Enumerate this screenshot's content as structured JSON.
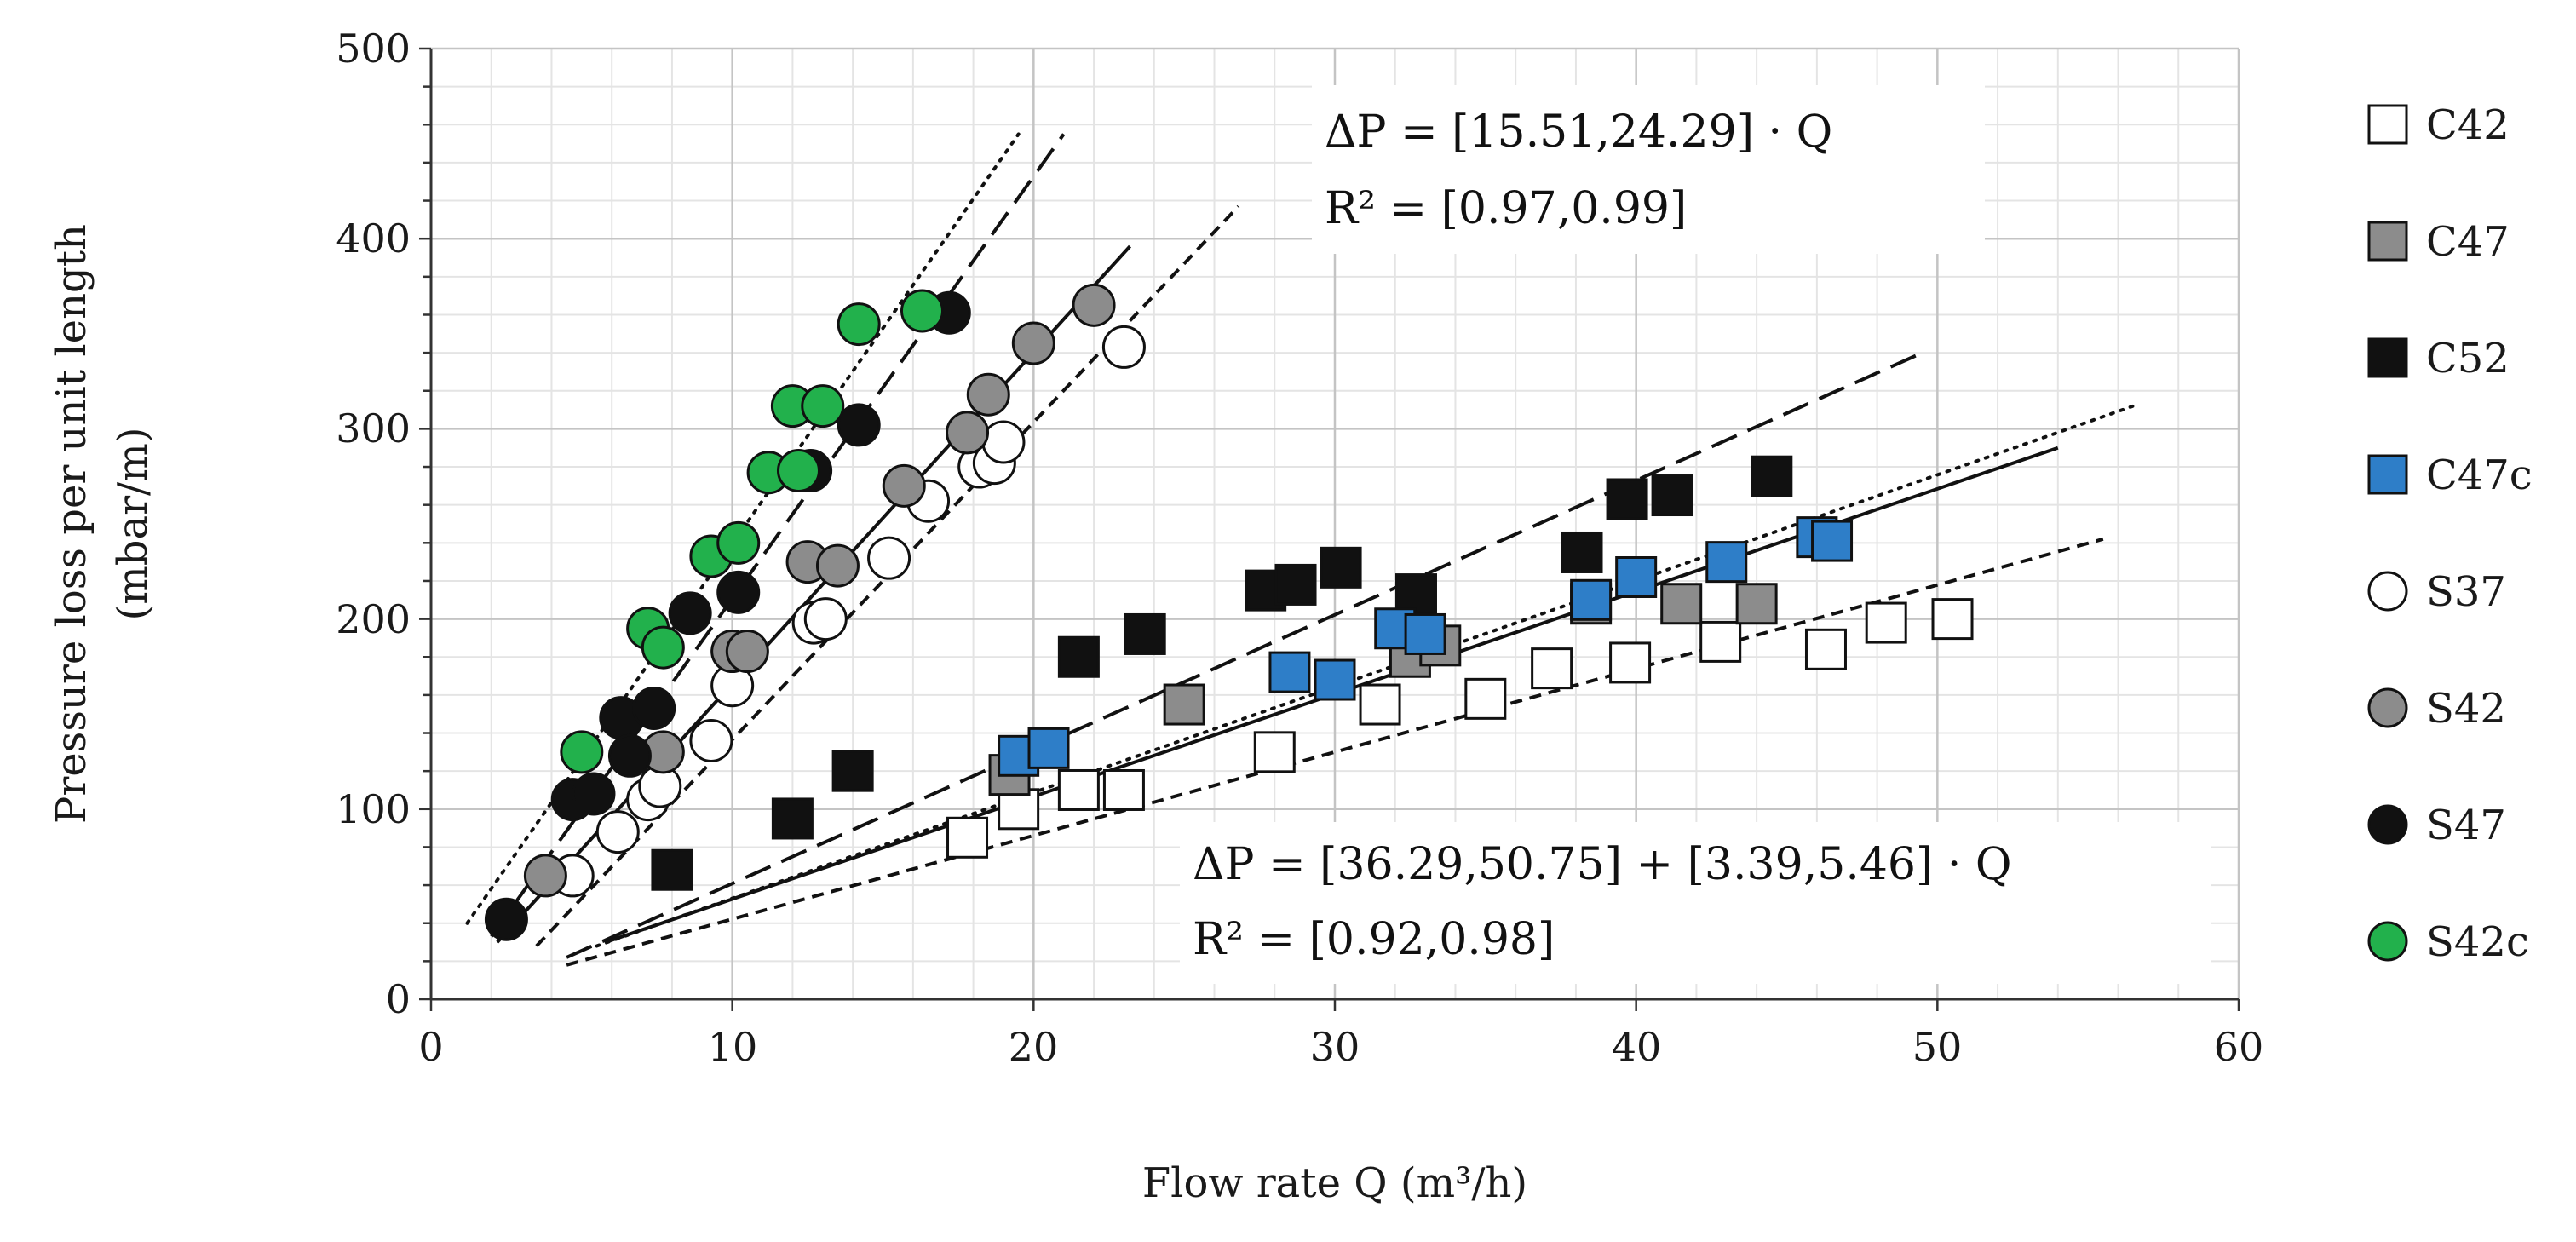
{
  "chart_data": {
    "type": "scatter",
    "title": "",
    "xlabel": "Flow rate Q (m³/h)",
    "ylabel_line1": "Pressure loss per unit length",
    "ylabel_line2": "(mbar/m)",
    "xlim": [
      0,
      60
    ],
    "ylim": [
      0,
      500
    ],
    "x_ticks": [
      "0",
      "10",
      "20",
      "30",
      "40",
      "50",
      "60"
    ],
    "y_ticks": [
      "0",
      "100",
      "200",
      "300",
      "400",
      "500"
    ],
    "grid": true,
    "legend_position": "right",
    "annotations": {
      "eq_top_line1": "ΔP = [15.51,24.29] · Q",
      "eq_top_line2": "R² = [0.97,0.99]",
      "eq_bottom_line1": "ΔP = [36.29,50.75] + [3.39,5.46] · Q",
      "eq_bottom_line2": "R² = [0.92,0.98]"
    },
    "series": [
      {
        "name": "C42",
        "marker": "square",
        "color": "#ffffff",
        "points": [
          [
            17.8,
            85
          ],
          [
            19.5,
            100
          ],
          [
            21.5,
            110
          ],
          [
            23,
            110
          ],
          [
            28,
            130
          ],
          [
            31.5,
            155
          ],
          [
            35,
            158
          ],
          [
            37.2,
            174
          ],
          [
            39.8,
            177
          ],
          [
            42.8,
            188
          ],
          [
            46.3,
            184
          ],
          [
            48.3,
            198
          ],
          [
            50.5,
            200
          ]
        ]
      },
      {
        "name": "C47",
        "marker": "square",
        "color": "#8c8c8c",
        "points": [
          [
            19.2,
            118
          ],
          [
            25,
            155
          ],
          [
            32.5,
            180
          ],
          [
            33.5,
            186
          ],
          [
            38.5,
            208
          ],
          [
            41.5,
            208
          ],
          [
            44,
            208
          ]
        ]
      },
      {
        "name": "C52",
        "marker": "square",
        "color": "#111111",
        "points": [
          [
            8,
            68
          ],
          [
            12,
            95
          ],
          [
            14,
            120
          ],
          [
            21.5,
            180
          ],
          [
            23.7,
            192
          ],
          [
            27.7,
            215
          ],
          [
            28.7,
            218
          ],
          [
            30.2,
            227
          ],
          [
            32.7,
            213
          ],
          [
            38.2,
            235
          ],
          [
            39.7,
            263
          ],
          [
            41.2,
            265
          ],
          [
            44.5,
            275
          ]
        ]
      },
      {
        "name": "C47c",
        "marker": "square",
        "color": "#2e7ec8",
        "points": [
          [
            19.5,
            128
          ],
          [
            20.5,
            132
          ],
          [
            28.5,
            172
          ],
          [
            30,
            168
          ],
          [
            32,
            195
          ],
          [
            33,
            192
          ],
          [
            38.5,
            210
          ],
          [
            40,
            222
          ],
          [
            43,
            230
          ],
          [
            46,
            243
          ],
          [
            46.5,
            241
          ]
        ]
      },
      {
        "name": "S37",
        "marker": "circle",
        "color": "#ffffff",
        "points": [
          [
            4.7,
            65
          ],
          [
            6.2,
            88
          ],
          [
            7.2,
            105
          ],
          [
            7.6,
            112
          ],
          [
            9.3,
            136
          ],
          [
            10,
            165
          ],
          [
            12.7,
            198
          ],
          [
            13.1,
            200
          ],
          [
            15.2,
            232
          ],
          [
            16.5,
            262
          ],
          [
            18.2,
            280
          ],
          [
            18.7,
            282
          ],
          [
            19,
            293
          ],
          [
            23,
            343
          ]
        ]
      },
      {
        "name": "S42",
        "marker": "circle",
        "color": "#8c8c8c",
        "points": [
          [
            3.8,
            65
          ],
          [
            7.7,
            130
          ],
          [
            10,
            183
          ],
          [
            10.5,
            183
          ],
          [
            12.5,
            230
          ],
          [
            13.5,
            228
          ],
          [
            15.7,
            270
          ],
          [
            17.8,
            298
          ],
          [
            18.5,
            318
          ],
          [
            20,
            345
          ],
          [
            22,
            365
          ]
        ]
      },
      {
        "name": "S47",
        "marker": "circle",
        "color": "#111111",
        "points": [
          [
            2.5,
            42
          ],
          [
            4.7,
            105
          ],
          [
            5.4,
            108
          ],
          [
            6.3,
            148
          ],
          [
            6.6,
            128
          ],
          [
            7.4,
            153
          ],
          [
            8.6,
            203
          ],
          [
            10.2,
            214
          ],
          [
            12.6,
            278
          ],
          [
            14.2,
            302
          ],
          [
            17.2,
            361
          ]
        ]
      },
      {
        "name": "S42c",
        "marker": "circle",
        "color": "#22b14c",
        "points": [
          [
            5,
            130
          ],
          [
            7.2,
            195
          ],
          [
            7.7,
            185
          ],
          [
            9.3,
            233
          ],
          [
            10.2,
            240
          ],
          [
            11.2,
            277
          ],
          [
            12,
            312
          ],
          [
            12.2,
            278
          ],
          [
            13,
            312
          ],
          [
            14.2,
            355
          ],
          [
            16.3,
            362
          ]
        ]
      }
    ],
    "fit_lines": [
      {
        "style": "dotted",
        "x": [
          1.2,
          19.5
        ],
        "y": [
          40,
          455
        ]
      },
      {
        "style": "long-dash",
        "x": [
          2.0,
          21.0
        ],
        "y": [
          33,
          455
        ]
      },
      {
        "style": "solid",
        "x": [
          2.2,
          23.2
        ],
        "y": [
          30,
          396
        ]
      },
      {
        "style": "short-dash",
        "x": [
          3.5,
          26.8
        ],
        "y": [
          28,
          417
        ]
      },
      {
        "style": "long-dash",
        "x": [
          4.5,
          49.5
        ],
        "y": [
          22,
          340
        ]
      },
      {
        "style": "dotted",
        "x": [
          5.5,
          56.5
        ],
        "y": [
          28,
          312
        ]
      },
      {
        "style": "solid",
        "x": [
          5.8,
          54.0
        ],
        "y": [
          30,
          290
        ]
      },
      {
        "style": "short-dash",
        "x": [
          4.5,
          55.5
        ],
        "y": [
          18,
          242
        ]
      }
    ]
  }
}
